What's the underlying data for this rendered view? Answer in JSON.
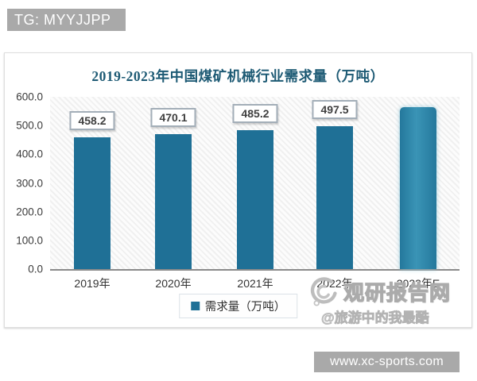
{
  "overlays": {
    "top_badge": "TG: MYYJJPP",
    "bottom_badge": "www.xc-sports.com"
  },
  "watermark": {
    "brand": "观研报告网",
    "handle": "@旅游中的我最酷"
  },
  "chart_data": {
    "type": "bar",
    "title": "2019-2023年中国煤矿机械行业需求量（万吨）",
    "categories": [
      "2019年",
      "2020年",
      "2021年",
      "2022年",
      "2023年E"
    ],
    "series": [
      {
        "name": "需求量（万吨）",
        "values": [
          458.2,
          470.1,
          485.2,
          497.5,
          565
        ]
      }
    ],
    "data_labels": [
      "458.2",
      "470.1",
      "485.2",
      "497.5",
      null
    ],
    "value_note": "2023年E bar carries no printed label; 565 estimated from gridlines",
    "legend": [
      "需求量（万吨）"
    ],
    "legend_position": "bottom",
    "ylim": [
      0,
      600
    ],
    "ytick_interval": 100,
    "ytick_labels": [
      "600.0",
      "500.0",
      "400.0",
      "300.0",
      "200.0",
      "100.0",
      "0.0"
    ],
    "grid": false,
    "bar_color": "#1f7096",
    "highlight_index": 4,
    "highlight_color": "#2e87ab",
    "title_color": "#1d5a74"
  }
}
